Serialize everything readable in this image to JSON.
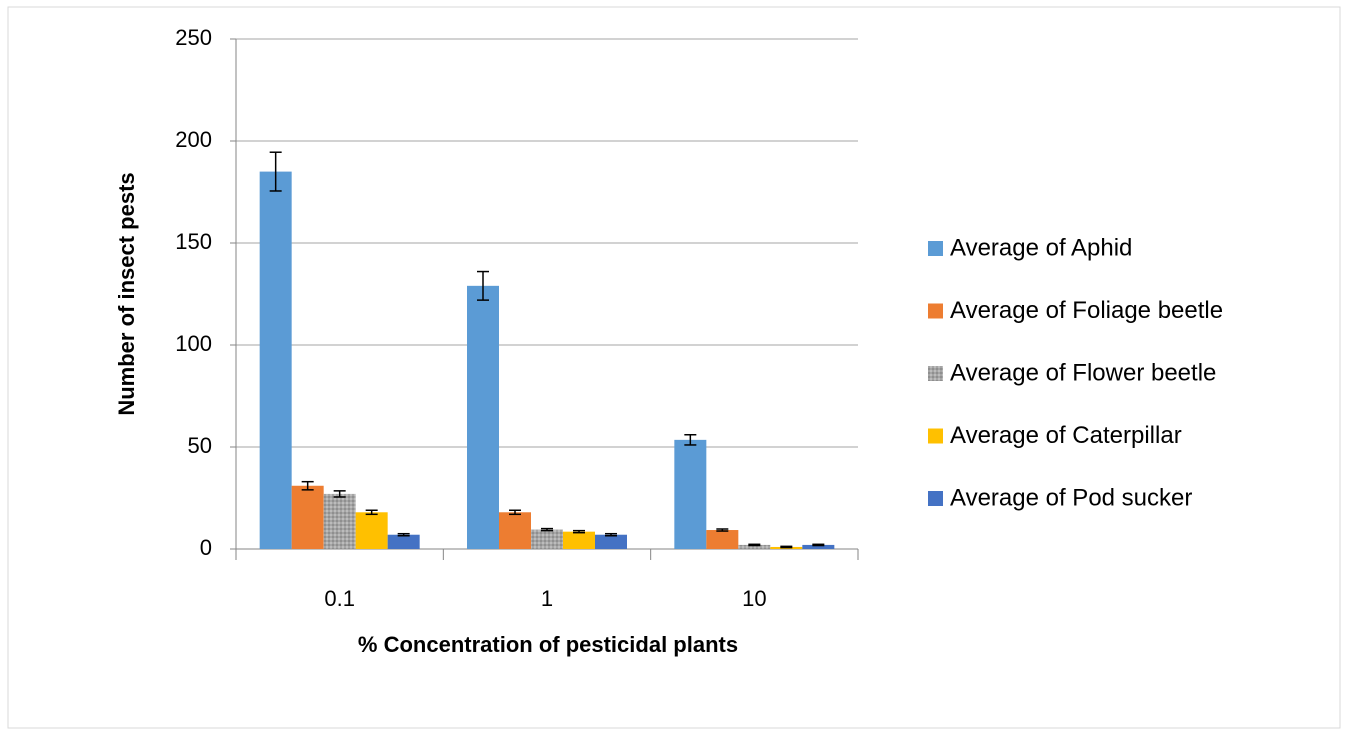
{
  "chart_data": {
    "type": "bar",
    "x_label": "% Concentration of pesticidal plants",
    "y_label": "Number of insect pests",
    "categories": [
      "0.1",
      "1",
      "10"
    ],
    "series": [
      {
        "name": "Average of Aphid",
        "color": "#5b9bd5",
        "values": [
          185,
          129,
          53.5
        ],
        "errors": [
          9.5,
          7,
          2.5
        ]
      },
      {
        "name": "Average of Foliage beetle",
        "color": "#ed7d31",
        "values": [
          31,
          18,
          9.3
        ],
        "errors": [
          2,
          1,
          0.5
        ]
      },
      {
        "name": "Average of Flower beetle",
        "color": "#a5a5a5",
        "values": [
          27,
          9.5,
          2
        ],
        "errors": [
          1.5,
          0.5,
          0.3
        ]
      },
      {
        "name": "Average of Caterpillar",
        "color": "#ffc000",
        "values": [
          18,
          8.5,
          1
        ],
        "errors": [
          1,
          0.5,
          0.3
        ]
      },
      {
        "name": "Average of Pod sucker",
        "color": "#4472c4",
        "values": [
          7,
          7,
          2
        ],
        "errors": [
          0.5,
          0.5,
          0.3
        ]
      }
    ],
    "ylim": [
      0,
      250
    ],
    "yticks": [
      0,
      50,
      100,
      150,
      200,
      250
    ],
    "grid": true,
    "legend": "right"
  }
}
